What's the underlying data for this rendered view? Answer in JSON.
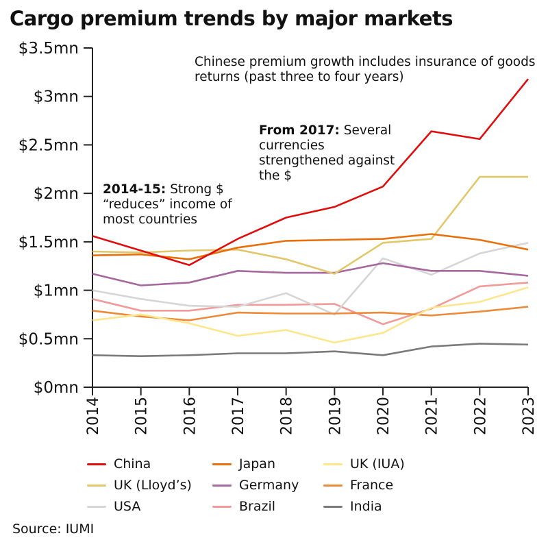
{
  "title": "Cargo premium trends by major markets",
  "source": "Source: IUMI",
  "annotations": [
    {
      "bold": "",
      "text": "Chinese premium growth includes insurance of goods returns (past three to four years)"
    },
    {
      "bold": "From 2017:",
      "text": " Several currencies strengthened against the $"
    },
    {
      "bold": "2014-15:",
      "text": " Strong $ “reduces” income of most countries"
    }
  ],
  "chart_data": {
    "type": "line",
    "title": "Cargo premium trends by major markets",
    "xlabel": "",
    "ylabel": "",
    "x": [
      2014,
      2015,
      2016,
      2017,
      2018,
      2019,
      2020,
      2021,
      2022,
      2023
    ],
    "x_tick_labels": [
      "2014",
      "2015",
      "2016",
      "2017",
      "2018",
      "2019",
      "2020",
      "2021",
      "2022",
      "2023"
    ],
    "ylim": [
      0,
      3.5
    ],
    "y_ticks": [
      0,
      0.5,
      1,
      1.5,
      2,
      2.5,
      3,
      3.5
    ],
    "y_tick_labels": [
      "$0mn",
      "$0.5mn",
      "$1mn",
      "$1.5mn",
      "$2mn",
      "$2.5mn",
      "$3mn",
      "$3.5mn"
    ],
    "grid": false,
    "legend_placement": "bottom",
    "series": [
      {
        "name": "China",
        "color": "#e00d0d",
        "values": [
          1.56,
          1.41,
          1.26,
          1.53,
          1.75,
          1.86,
          2.07,
          2.64,
          2.56,
          3.18
        ]
      },
      {
        "name": "Japan",
        "color": "#e8700a",
        "values": [
          1.36,
          1.37,
          1.32,
          1.44,
          1.51,
          1.52,
          1.53,
          1.58,
          1.52,
          1.42
        ]
      },
      {
        "name": "UK (IUA)",
        "color": "#fde68c",
        "values": [
          0.69,
          0.75,
          0.66,
          0.53,
          0.59,
          0.46,
          0.56,
          0.82,
          0.88,
          1.03
        ]
      },
      {
        "name": "UK (Lloyd’s)",
        "color": "#e2c76a",
        "values": [
          1.4,
          1.39,
          1.41,
          1.42,
          1.32,
          1.17,
          1.49,
          1.53,
          2.17,
          2.17
        ]
      },
      {
        "name": "Germany",
        "color": "#a6679e",
        "values": [
          1.17,
          1.05,
          1.08,
          1.2,
          1.18,
          1.18,
          1.28,
          1.2,
          1.2,
          1.15
        ]
      },
      {
        "name": "France",
        "color": "#ec8a3c",
        "values": [
          0.79,
          0.73,
          0.69,
          0.77,
          0.76,
          0.76,
          0.77,
          0.74,
          0.78,
          0.83
        ]
      },
      {
        "name": "USA",
        "color": "#d6d6d6",
        "values": [
          1.0,
          0.91,
          0.84,
          0.83,
          0.97,
          0.75,
          1.33,
          1.16,
          1.38,
          1.49
        ]
      },
      {
        "name": "Brazil",
        "color": "#f19a9a",
        "values": [
          0.91,
          0.79,
          0.79,
          0.85,
          0.85,
          0.86,
          0.65,
          0.81,
          1.04,
          1.08
        ]
      },
      {
        "name": "India",
        "color": "#7a7a7a",
        "values": [
          0.33,
          0.32,
          0.33,
          0.35,
          0.35,
          0.37,
          0.33,
          0.42,
          0.45,
          0.44
        ]
      }
    ]
  }
}
